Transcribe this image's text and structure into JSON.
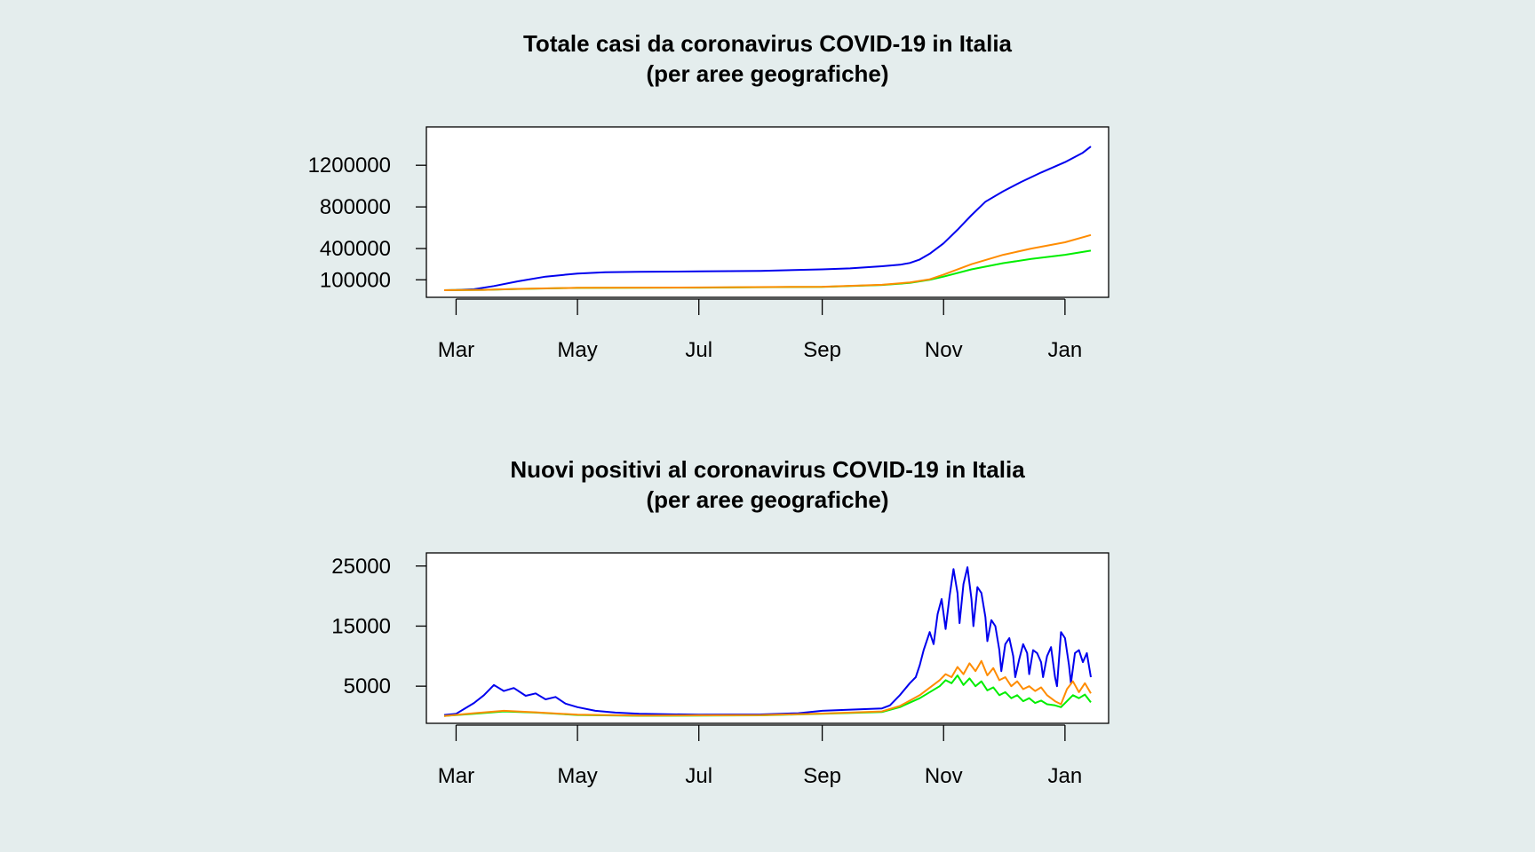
{
  "colors": {
    "background": "#e4eded",
    "plot_bg": "#ffffff",
    "north": "#0000ee",
    "center": "#00ee00",
    "south": "#ff8c00"
  },
  "chart_data": [
    {
      "type": "line",
      "title": "Totale casi da coronavirus COVID-19 in Italia",
      "subtitle": "(per aree geografiche)",
      "xlabel": "",
      "ylabel": "",
      "xlim": [
        "2020-02-24",
        "2021-01-14"
      ],
      "ylim": [
        0,
        1500000
      ],
      "grid": false,
      "x_ticks": [
        {
          "label": "Mar",
          "date": "2020-03-01"
        },
        {
          "label": "May",
          "date": "2020-05-01"
        },
        {
          "label": "Jul",
          "date": "2020-07-01"
        },
        {
          "label": "Sep",
          "date": "2020-09-01"
        },
        {
          "label": "Nov",
          "date": "2020-11-01"
        },
        {
          "label": "Jan",
          "date": "2021-01-01"
        }
      ],
      "y_ticks": [
        {
          "label": "100000",
          "value": 100000
        },
        {
          "label": "400000",
          "value": 400000
        },
        {
          "label": "800000",
          "value": 800000
        },
        {
          "label": "1200000",
          "value": 1200000
        }
      ],
      "series": [
        {
          "color": "#0000ee",
          "points": [
            [
              "2020-02-24",
              300
            ],
            [
              "2020-03-01",
              1500
            ],
            [
              "2020-03-10",
              9000
            ],
            [
              "2020-03-20",
              40000
            ],
            [
              "2020-04-01",
              85000
            ],
            [
              "2020-04-15",
              130000
            ],
            [
              "2020-05-01",
              160000
            ],
            [
              "2020-05-15",
              172000
            ],
            [
              "2020-06-01",
              177000
            ],
            [
              "2020-07-01",
              181000
            ],
            [
              "2020-08-01",
              186000
            ],
            [
              "2020-09-01",
              200000
            ],
            [
              "2020-09-15",
              210000
            ],
            [
              "2020-10-01",
              230000
            ],
            [
              "2020-10-10",
              245000
            ],
            [
              "2020-10-15",
              262000
            ],
            [
              "2020-10-20",
              295000
            ],
            [
              "2020-10-25",
              350000
            ],
            [
              "2020-11-01",
              450000
            ],
            [
              "2020-11-08",
              580000
            ],
            [
              "2020-11-15",
              720000
            ],
            [
              "2020-11-22",
              850000
            ],
            [
              "2020-12-01",
              950000
            ],
            [
              "2020-12-10",
              1040000
            ],
            [
              "2020-12-20",
              1130000
            ],
            [
              "2021-01-01",
              1230000
            ],
            [
              "2021-01-10",
              1320000
            ],
            [
              "2021-01-14",
              1380000
            ]
          ]
        },
        {
          "color": "#00ee00",
          "points": [
            [
              "2020-02-24",
              100
            ],
            [
              "2020-03-15",
              3000
            ],
            [
              "2020-04-01",
              12000
            ],
            [
              "2020-05-01",
              22000
            ],
            [
              "2020-07-01",
              25000
            ],
            [
              "2020-09-01",
              32000
            ],
            [
              "2020-10-01",
              50000
            ],
            [
              "2020-10-15",
              70000
            ],
            [
              "2020-10-25",
              100000
            ],
            [
              "2020-11-01",
              130000
            ],
            [
              "2020-11-15",
              200000
            ],
            [
              "2020-12-01",
              260000
            ],
            [
              "2020-12-15",
              300000
            ],
            [
              "2021-01-01",
              340000
            ],
            [
              "2021-01-14",
              380000
            ]
          ]
        },
        {
          "color": "#ff8c00",
          "points": [
            [
              "2020-02-24",
              100
            ],
            [
              "2020-03-15",
              3500
            ],
            [
              "2020-04-01",
              13000
            ],
            [
              "2020-05-01",
              23000
            ],
            [
              "2020-07-01",
              26000
            ],
            [
              "2020-09-01",
              33000
            ],
            [
              "2020-10-01",
              52000
            ],
            [
              "2020-10-15",
              75000
            ],
            [
              "2020-10-25",
              105000
            ],
            [
              "2020-11-01",
              150000
            ],
            [
              "2020-11-15",
              250000
            ],
            [
              "2020-12-01",
              340000
            ],
            [
              "2020-12-15",
              400000
            ],
            [
              "2021-01-01",
              460000
            ],
            [
              "2021-01-14",
              530000
            ]
          ]
        }
      ]
    },
    {
      "type": "line",
      "title": "Nuovi positivi al coronavirus COVID-19 in Italia",
      "subtitle": "(per aree geografiche)",
      "xlabel": "",
      "ylabel": "",
      "xlim": [
        "2020-02-24",
        "2021-01-14"
      ],
      "ylim": [
        0,
        26000
      ],
      "grid": false,
      "x_ticks": [
        {
          "label": "Mar",
          "date": "2020-03-01"
        },
        {
          "label": "May",
          "date": "2020-05-01"
        },
        {
          "label": "Jul",
          "date": "2020-07-01"
        },
        {
          "label": "Sep",
          "date": "2020-09-01"
        },
        {
          "label": "Nov",
          "date": "2020-11-01"
        },
        {
          "label": "Jan",
          "date": "2021-01-01"
        }
      ],
      "y_ticks": [
        {
          "label": "5000",
          "value": 5000
        },
        {
          "label": "15000",
          "value": 15000
        },
        {
          "label": "25000",
          "value": 25000
        }
      ],
      "series": [
        {
          "color": "#0000ee",
          "points": [
            [
              "2020-02-24",
              200
            ],
            [
              "2020-03-01",
              400
            ],
            [
              "2020-03-05",
              1200
            ],
            [
              "2020-03-10",
              2200
            ],
            [
              "2020-03-15",
              3500
            ],
            [
              "2020-03-20",
              5200
            ],
            [
              "2020-03-25",
              4200
            ],
            [
              "2020-03-30",
              4700
            ],
            [
              "2020-04-05",
              3400
            ],
            [
              "2020-04-10",
              3800
            ],
            [
              "2020-04-15",
              2800
            ],
            [
              "2020-04-20",
              3200
            ],
            [
              "2020-04-25",
              2100
            ],
            [
              "2020-05-01",
              1500
            ],
            [
              "2020-05-10",
              900
            ],
            [
              "2020-05-20",
              600
            ],
            [
              "2020-06-01",
              400
            ],
            [
              "2020-07-01",
              250
            ],
            [
              "2020-08-01",
              300
            ],
            [
              "2020-08-20",
              500
            ],
            [
              "2020-09-01",
              900
            ],
            [
              "2020-09-15",
              1100
            ],
            [
              "2020-10-01",
              1300
            ],
            [
              "2020-10-05",
              1800
            ],
            [
              "2020-10-10",
              3500
            ],
            [
              "2020-10-15",
              5500
            ],
            [
              "2020-10-18",
              6500
            ],
            [
              "2020-10-20",
              8500
            ],
            [
              "2020-10-22",
              11000
            ],
            [
              "2020-10-25",
              14000
            ],
            [
              "2020-10-27",
              12000
            ],
            [
              "2020-10-29",
              17000
            ],
            [
              "2020-10-31",
              19500
            ],
            [
              "2020-11-02",
              14500
            ],
            [
              "2020-11-04",
              20000
            ],
            [
              "2020-11-06",
              24500
            ],
            [
              "2020-11-08",
              20500
            ],
            [
              "2020-11-09",
              15500
            ],
            [
              "2020-11-11",
              22000
            ],
            [
              "2020-11-13",
              24800
            ],
            [
              "2020-11-15",
              19500
            ],
            [
              "2020-11-16",
              15000
            ],
            [
              "2020-11-18",
              21500
            ],
            [
              "2020-11-20",
              20500
            ],
            [
              "2020-11-22",
              16500
            ],
            [
              "2020-11-23",
              12500
            ],
            [
              "2020-11-25",
              16000
            ],
            [
              "2020-11-27",
              15000
            ],
            [
              "2020-11-29",
              11000
            ],
            [
              "2020-11-30",
              7500
            ],
            [
              "2020-12-02",
              12000
            ],
            [
              "2020-12-04",
              13000
            ],
            [
              "2020-12-06",
              10000
            ],
            [
              "2020-12-07",
              6500
            ],
            [
              "2020-12-09",
              9500
            ],
            [
              "2020-12-11",
              12000
            ],
            [
              "2020-12-13",
              10500
            ],
            [
              "2020-12-14",
              7000
            ],
            [
              "2020-12-16",
              11000
            ],
            [
              "2020-12-18",
              10500
            ],
            [
              "2020-12-20",
              9000
            ],
            [
              "2020-12-21",
              6500
            ],
            [
              "2020-12-23",
              10000
            ],
            [
              "2020-12-25",
              11500
            ],
            [
              "2020-12-27",
              6500
            ],
            [
              "2020-12-28",
              5000
            ],
            [
              "2020-12-30",
              14000
            ],
            [
              "2021-01-01",
              13000
            ],
            [
              "2021-01-03",
              8500
            ],
            [
              "2021-01-04",
              5500
            ],
            [
              "2021-01-06",
              10500
            ],
            [
              "2021-01-08",
              11000
            ],
            [
              "2021-01-10",
              9000
            ],
            [
              "2021-01-12",
              10500
            ],
            [
              "2021-01-14",
              6500
            ]
          ]
        },
        {
          "color": "#00ee00",
          "points": [
            [
              "2020-02-24",
              50
            ],
            [
              "2020-03-10",
              400
            ],
            [
              "2020-03-25",
              800
            ],
            [
              "2020-04-10",
              600
            ],
            [
              "2020-05-01",
              200
            ],
            [
              "2020-06-01",
              80
            ],
            [
              "2020-08-01",
              150
            ],
            [
              "2020-09-01",
              400
            ],
            [
              "2020-10-01",
              700
            ],
            [
              "2020-10-10",
              1500
            ],
            [
              "2020-10-20",
              3000
            ],
            [
              "2020-10-30",
              5000
            ],
            [
              "2020-11-02",
              6000
            ],
            [
              "2020-11-05",
              5500
            ],
            [
              "2020-11-08",
              6800
            ],
            [
              "2020-11-11",
              5200
            ],
            [
              "2020-11-14",
              6300
            ],
            [
              "2020-11-17",
              5000
            ],
            [
              "2020-11-20",
              5800
            ],
            [
              "2020-11-23",
              4300
            ],
            [
              "2020-11-26",
              4800
            ],
            [
              "2020-11-29",
              3500
            ],
            [
              "2020-12-02",
              4000
            ],
            [
              "2020-12-05",
              3000
            ],
            [
              "2020-12-08",
              3500
            ],
            [
              "2020-12-11",
              2500
            ],
            [
              "2020-12-14",
              3000
            ],
            [
              "2020-12-17",
              2200
            ],
            [
              "2020-12-20",
              2600
            ],
            [
              "2020-12-23",
              2000
            ],
            [
              "2020-12-27",
              1800
            ],
            [
              "2020-12-30",
              1500
            ],
            [
              "2021-01-02",
              2500
            ],
            [
              "2021-01-05",
              3500
            ],
            [
              "2021-01-08",
              3000
            ],
            [
              "2021-01-11",
              3600
            ],
            [
              "2021-01-14",
              2300
            ]
          ]
        },
        {
          "color": "#ff8c00",
          "points": [
            [
              "2020-02-24",
              50
            ],
            [
              "2020-03-10",
              500
            ],
            [
              "2020-03-25",
              900
            ],
            [
              "2020-04-10",
              650
            ],
            [
              "2020-05-01",
              250
            ],
            [
              "2020-06-01",
              100
            ],
            [
              "2020-08-01",
              180
            ],
            [
              "2020-09-01",
              450
            ],
            [
              "2020-10-01",
              800
            ],
            [
              "2020-10-10",
              1700
            ],
            [
              "2020-10-20",
              3500
            ],
            [
              "2020-10-30",
              6000
            ],
            [
              "2020-11-02",
              7000
            ],
            [
              "2020-11-05",
              6500
            ],
            [
              "2020-11-08",
              8200
            ],
            [
              "2020-11-11",
              7000
            ],
            [
              "2020-11-14",
              8800
            ],
            [
              "2020-11-17",
              7500
            ],
            [
              "2020-11-20",
              9200
            ],
            [
              "2020-11-23",
              6800
            ],
            [
              "2020-11-26",
              8000
            ],
            [
              "2020-11-29",
              6000
            ],
            [
              "2020-12-02",
              6500
            ],
            [
              "2020-12-05",
              5000
            ],
            [
              "2020-12-08",
              5800
            ],
            [
              "2020-12-11",
              4500
            ],
            [
              "2020-12-14",
              5000
            ],
            [
              "2020-12-17",
              4200
            ],
            [
              "2020-12-20",
              4800
            ],
            [
              "2020-12-23",
              3500
            ],
            [
              "2020-12-27",
              2500
            ],
            [
              "2020-12-30",
              2000
            ],
            [
              "2021-01-02",
              4500
            ],
            [
              "2021-01-05",
              5800
            ],
            [
              "2021-01-08",
              4000
            ],
            [
              "2021-01-11",
              5500
            ],
            [
              "2021-01-14",
              3800
            ]
          ]
        }
      ]
    }
  ]
}
